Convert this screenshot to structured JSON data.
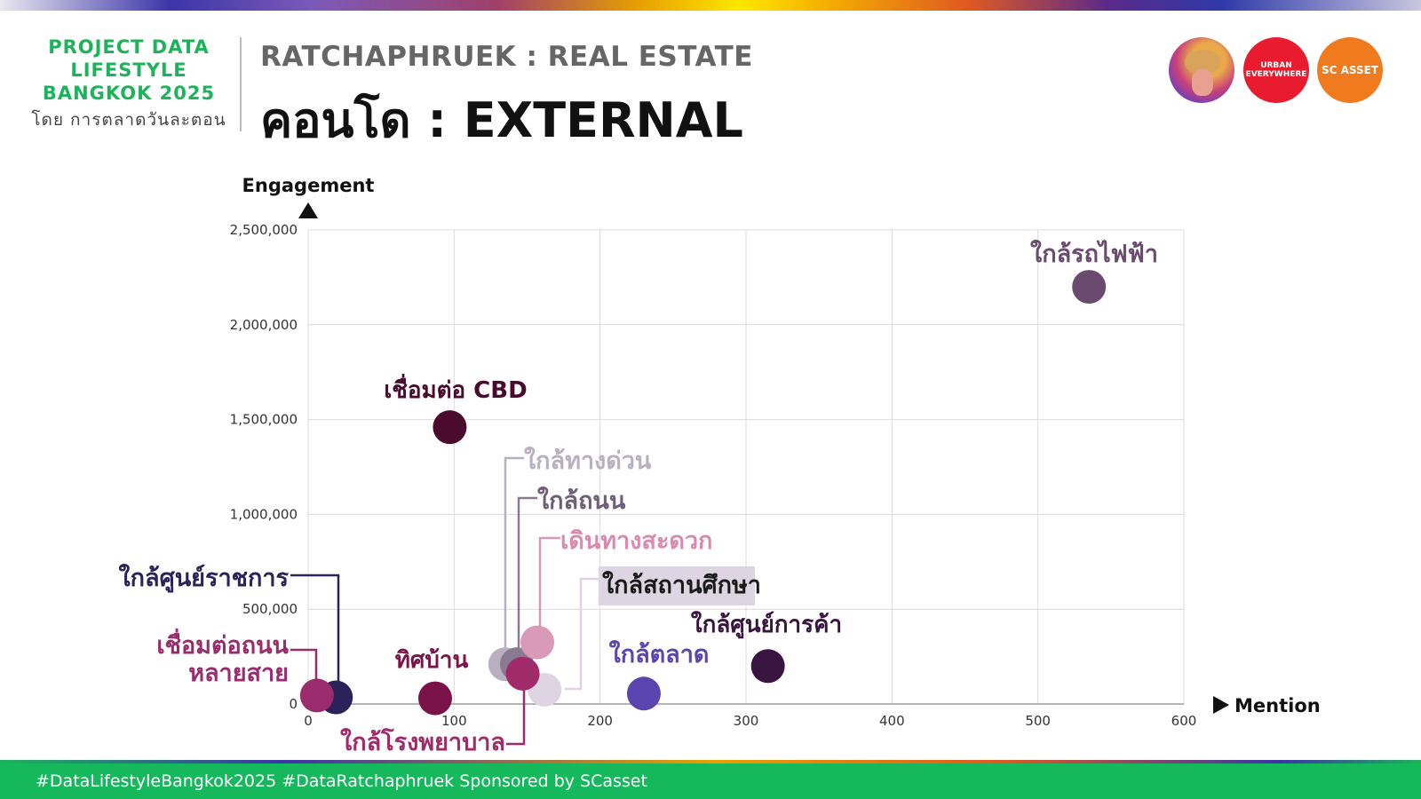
{
  "brand": {
    "title": "PROJECT DATA\nLIFESTYLE\nBANGKOK 2025",
    "subtitle": "โดย การตลาดวันละตอน"
  },
  "header": {
    "subtitle": "RATCHAPHRUEK : REAL ESTATE",
    "title": "คอนโด : EXTERNAL"
  },
  "logos": {
    "urban": "URBAN\nEVERYWHERE",
    "scasset": "SC ASSET"
  },
  "footer": {
    "text": "#DataLifestyleBangkok2025 #DataRatchaphruek Sponsored by SCasset"
  },
  "chart_data": {
    "type": "scatter",
    "title": "",
    "xlabel": "Mention",
    "ylabel": "Engagement",
    "xlim": [
      0,
      600
    ],
    "ylim": [
      0,
      2500000
    ],
    "x_ticks": [
      0,
      100,
      200,
      300,
      400,
      500,
      600
    ],
    "y_ticks": [
      0,
      500000,
      1000000,
      1500000,
      2000000,
      2500000
    ],
    "x_tick_labels": [
      "0",
      "100",
      "200",
      "300",
      "400",
      "500",
      "600"
    ],
    "y_tick_labels": [
      "0",
      "500,000",
      "1,000,000",
      "1,500,000",
      "2,000,000",
      "2,500,000"
    ],
    "grid": true,
    "points": [
      {
        "label": "ใกล้รถไฟฟ้า",
        "x": 535,
        "y": 2200000,
        "color": "#6b4a70",
        "label_color": "#6b4a70"
      },
      {
        "label": "เชื่อมต่อ CBD",
        "x": 97,
        "y": 1460000,
        "color": "#4a0a2e",
        "label_color": "#4a0a2e"
      },
      {
        "label": "ใกล้ทางด่วน",
        "x": 135,
        "y": 210000,
        "color": "#b8b0c0",
        "label_color": "#b8b0c0"
      },
      {
        "label": "ใกล้ถนน",
        "x": 143,
        "y": 210000,
        "color": "#8a7a90",
        "label_color": "#6e5e78"
      },
      {
        "label": "เดินทางสะดวก",
        "x": 157,
        "y": 325000,
        "color": "#d89ab8",
        "label_color": "#d88ab0"
      },
      {
        "label": "ใกล้สถานศึกษา",
        "x": 162,
        "y": 75000,
        "color": "#ded4e2",
        "label_color": "#1a1a1a"
      },
      {
        "label": "ใกล้ศูนย์การค้า",
        "x": 315,
        "y": 200000,
        "color": "#3a1440",
        "label_color": "#3a1440"
      },
      {
        "label": "ใกล้ตลาด",
        "x": 230,
        "y": 55000,
        "color": "#5a44b0",
        "label_color": "#5a44b0"
      },
      {
        "label": "ทิศบ้าน",
        "x": 87,
        "y": 30000,
        "color": "#7a1448",
        "label_color": "#7a1448"
      },
      {
        "label": "ใกล้โรงพยาบาล",
        "x": 147,
        "y": 160000,
        "color": "#a02a6a",
        "label_color": "#a02a6a"
      },
      {
        "label": "ใกล้ศูนย์ราชการ",
        "x": 19,
        "y": 35000,
        "color": "#2a2258",
        "label_color": "#2a2258"
      },
      {
        "label": "เชื่อมต่อถนน\nหลายสาย",
        "x": 6,
        "y": 45000,
        "color": "#9a2c6e",
        "label_color": "#9a2c6e"
      }
    ]
  }
}
